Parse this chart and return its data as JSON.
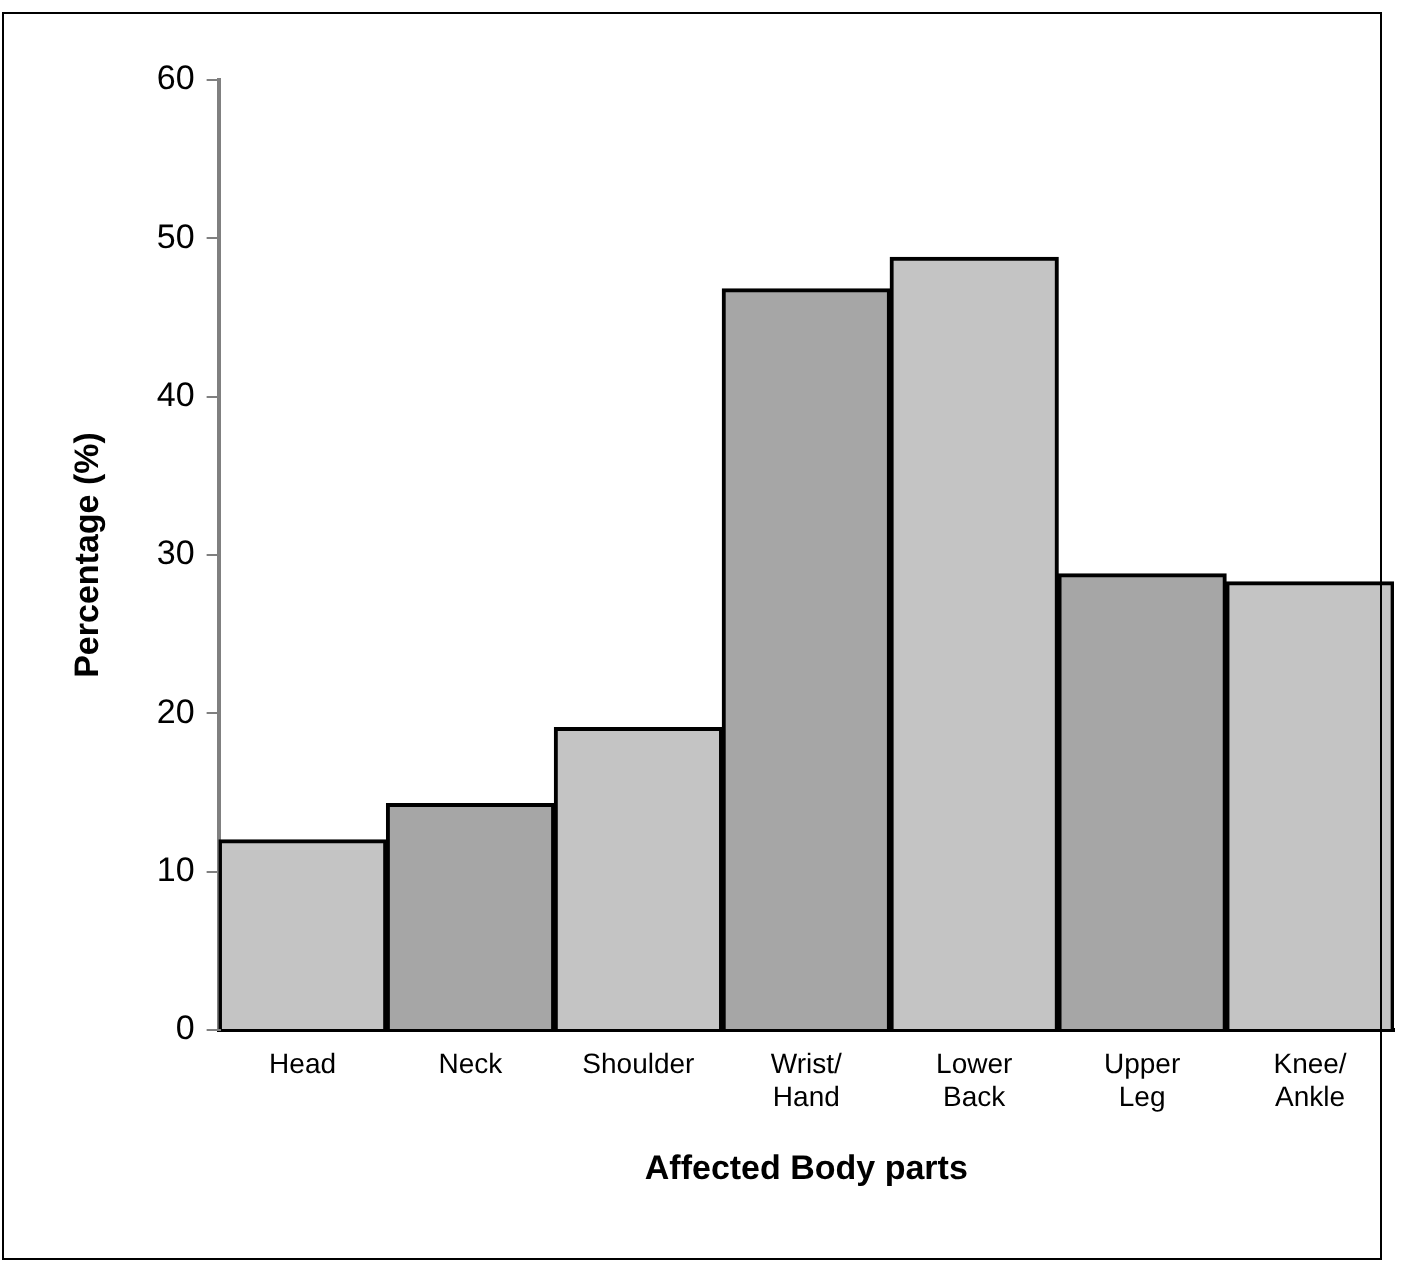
{
  "chart_data": {
    "type": "bar",
    "xlabel": "Affected Body parts",
    "ylabel": "Percentage (%)",
    "categories": [
      "Head",
      "Neck",
      "Shoulder",
      "Wrist/ Hand",
      "Lower Back",
      "Upper Leg",
      "Knee/ Ankle"
    ],
    "values": [
      12.0,
      14.3,
      19.1,
      46.8,
      48.8,
      28.8,
      28.3
    ],
    "colors": [
      "#c4c4c4",
      "#a6a6a6",
      "#c4c4c4",
      "#a6a6a6",
      "#c4c4c4",
      "#a6a6a6",
      "#c4c4c4"
    ],
    "ylim": [
      0,
      60
    ],
    "yticks": [
      0,
      10,
      20,
      30,
      40,
      50,
      60
    ],
    "grid": false,
    "legend": false
  }
}
